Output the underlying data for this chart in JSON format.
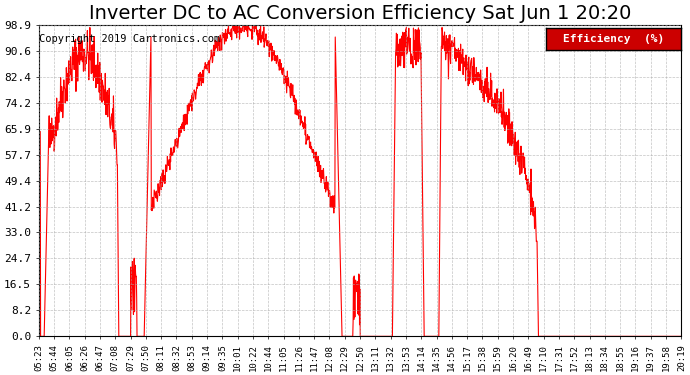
{
  "title": "Inverter DC to AC Conversion Efficiency Sat Jun 1 20:20",
  "copyright": "Copyright 2019 Cartronics.com",
  "legend_label": "Efficiency  (%)",
  "yticks": [
    0.0,
    8.2,
    16.5,
    24.7,
    33.0,
    41.2,
    49.4,
    57.7,
    65.9,
    74.2,
    82.4,
    90.6,
    98.9
  ],
  "ylim": [
    0.0,
    98.9
  ],
  "line_color": "#ff0000",
  "bg_color": "#ffffff",
  "grid_color": "#aaaaaa",
  "title_fontsize": 14,
  "copyright_fontsize": 8,
  "xtick_labels": [
    "05:23",
    "05:44",
    "06:05",
    "06:26",
    "06:47",
    "07:08",
    "07:29",
    "07:50",
    "08:11",
    "08:32",
    "08:53",
    "09:14",
    "09:35",
    "10:01",
    "10:22",
    "10:44",
    "11:05",
    "11:26",
    "11:47",
    "12:08",
    "12:29",
    "12:50",
    "13:11",
    "13:32",
    "13:53",
    "14:14",
    "14:35",
    "14:56",
    "15:17",
    "15:38",
    "15:59",
    "16:20",
    "16:49",
    "17:10",
    "17:31",
    "17:52",
    "18:13",
    "18:34",
    "18:55",
    "19:16",
    "19:37",
    "19:58",
    "20:19"
  ]
}
